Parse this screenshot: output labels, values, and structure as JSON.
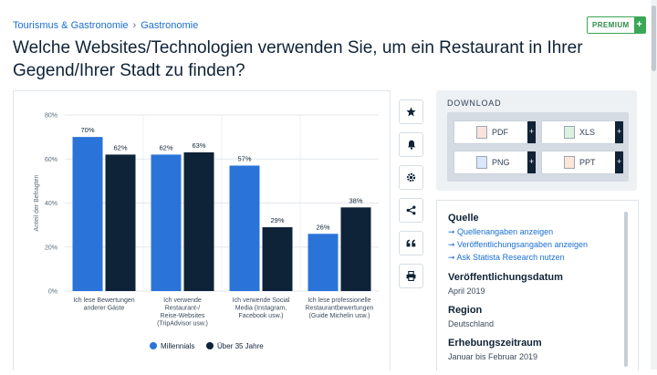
{
  "breadcrumb": {
    "first": "Tourismus & Gastronomie",
    "separator": "›",
    "second": "Gastronomie"
  },
  "premium_label": "PREMIUM",
  "title": "Welche Websites/Technologien verwenden Sie, um ein Restaurant in Ihrer Gegend/Ihrer Stadt zu finden?",
  "toolbar_icons": [
    "star-icon",
    "bell-icon",
    "gear-icon",
    "share-icon",
    "quote-icon",
    "print-icon"
  ],
  "download": {
    "heading": "DOWNLOAD",
    "buttons": [
      {
        "label": "PDF",
        "color": "#e05a3a"
      },
      {
        "label": "XLS",
        "color": "#2e8b47"
      },
      {
        "label": "PNG",
        "color": "#3a6fd1"
      },
      {
        "label": "PPT",
        "color": "#e0733a"
      }
    ]
  },
  "info": {
    "source_heading": "Quelle",
    "links": [
      "Quellenangaben anzeigen",
      "Veröffentlichungsangaben anzeigen",
      "Ask Statista Research nutzen"
    ],
    "pub_heading": "Veröffentlichungsdatum",
    "pub_value": "April 2019",
    "region_heading": "Region",
    "region_value": "Deutschland",
    "period_heading": "Erhebungszeitraum",
    "period_value": "Januar bis Februar 2019"
  },
  "chart_data": {
    "type": "bar",
    "ylabel": "Anteil der Befragten",
    "ylim": [
      0,
      80
    ],
    "yticks": [
      "0%",
      "20%",
      "40%",
      "60%",
      "80%"
    ],
    "categories": [
      [
        "Ich lese Bewertungen",
        "anderer Gäste"
      ],
      [
        "Ich verwende",
        "Restaurant-/",
        "Reise-Websites",
        "(TripAdvisor usw.)"
      ],
      [
        "Ich verwende Social",
        "Media (Instagram,",
        "Facebook usw.)"
      ],
      [
        "Ich lese professionelle",
        "Restaurantbewertungen",
        "(Guide Michelin usw.)"
      ]
    ],
    "series": [
      {
        "name": "Millennials",
        "color": "#2a74d9",
        "values": [
          70,
          62,
          57,
          26
        ],
        "labels": [
          "70%",
          "62%",
          "57%",
          "26%"
        ]
      },
      {
        "name": "Über 35 Jahre",
        "color": "#0e2238",
        "values": [
          62,
          63,
          29,
          38
        ],
        "labels": [
          "62%",
          "63%",
          "29%",
          "38%"
        ]
      }
    ],
    "grid": true,
    "legend": "bottom"
  }
}
